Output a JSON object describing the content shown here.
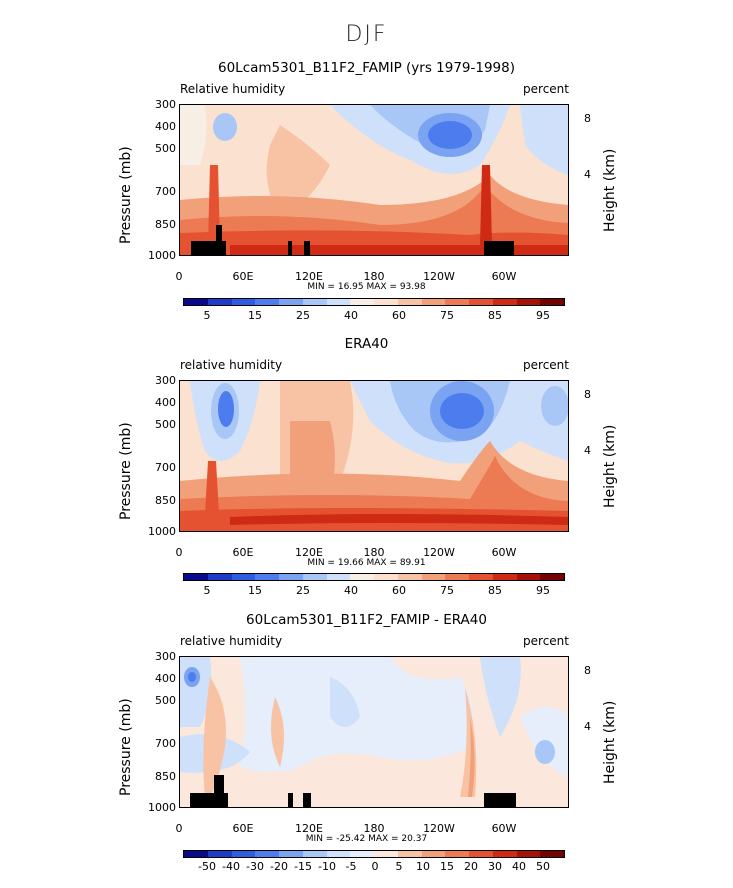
{
  "page": {
    "title": "DJF"
  },
  "chart_data": [
    {
      "type": "heatmap",
      "title": "60Lcam5301_B11F2_FAMIP (yrs 1979-1998)",
      "left_label": "Relative humidity",
      "right_label": "percent",
      "ylabel": "Pressure (mb)",
      "y2label": "Height (km)",
      "x_ticks": [
        "0",
        "60E",
        "120E",
        "180",
        "120W",
        "60W"
      ],
      "y_ticks": [
        "300",
        "400",
        "500",
        "700",
        "850",
        "1000"
      ],
      "y2_ticks": [
        "8",
        "4"
      ],
      "min_max": "MIN =   16.95   MAX =   93.98",
      "colorbar_labels": [
        "5",
        "15",
        "25",
        "40",
        "60",
        "75",
        "85",
        "95"
      ],
      "colorbar_colors": [
        "#0a0a8c",
        "#1e3cc8",
        "#2e5de0",
        "#4c7cee",
        "#7aa3f2",
        "#a8c6f6",
        "#cfe0fa",
        "#f7efe6",
        "#fce0cf",
        "#f8c3a4",
        "#f2a07a",
        "#ec7a52",
        "#e45232",
        "#cf2a14",
        "#a61208",
        "#730303"
      ]
    },
    {
      "type": "heatmap",
      "title": "ERA40",
      "left_label": "relative humidity",
      "right_label": "percent",
      "ylabel": "Pressure (mb)",
      "y2label": "Height (km)",
      "x_ticks": [
        "0",
        "60E",
        "120E",
        "180",
        "120W",
        "60W"
      ],
      "y_ticks": [
        "300",
        "400",
        "500",
        "700",
        "850",
        "1000"
      ],
      "y2_ticks": [
        "8",
        "4"
      ],
      "min_max": "MIN =   19.66   MAX =   89.91",
      "colorbar_labels": [
        "5",
        "15",
        "25",
        "40",
        "60",
        "75",
        "85",
        "95"
      ],
      "colorbar_colors": [
        "#0a0a8c",
        "#1e3cc8",
        "#2e5de0",
        "#4c7cee",
        "#7aa3f2",
        "#a8c6f6",
        "#cfe0fa",
        "#f7efe6",
        "#fce0cf",
        "#f8c3a4",
        "#f2a07a",
        "#ec7a52",
        "#e45232",
        "#cf2a14",
        "#a61208",
        "#730303"
      ]
    },
    {
      "type": "heatmap",
      "title": "60Lcam5301_B11F2_FAMIP - ERA40",
      "left_label": "relative humidity",
      "right_label": "percent",
      "ylabel": "Pressure (mb)",
      "y2label": "Height (km)",
      "x_ticks": [
        "0",
        "60E",
        "120E",
        "180",
        "120W",
        "60W"
      ],
      "y_ticks": [
        "300",
        "400",
        "500",
        "700",
        "850",
        "1000"
      ],
      "y2_ticks": [
        "8",
        "4"
      ],
      "min_max": "MIN =  -25.42   MAX =   20.37",
      "colorbar_labels": [
        "-50",
        "-40",
        "-30",
        "-20",
        "-15",
        "-10",
        "-5",
        "0",
        "5",
        "10",
        "15",
        "20",
        "30",
        "40",
        "50"
      ],
      "colorbar_colors": [
        "#0a0a8c",
        "#1e3cc8",
        "#2e5de0",
        "#4c7cee",
        "#7aa3f2",
        "#a8c6f6",
        "#cfe0fa",
        "#e6eefc",
        "#fbe7dc",
        "#f8c3a4",
        "#f2a07a",
        "#ec7a52",
        "#e45232",
        "#cf2a14",
        "#a61208",
        "#730303"
      ]
    }
  ]
}
